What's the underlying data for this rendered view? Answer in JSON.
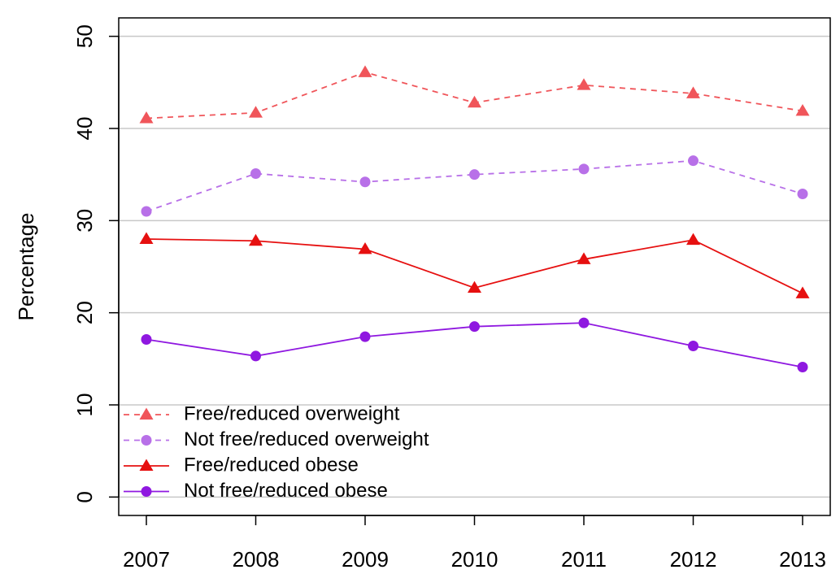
{
  "chart_data": {
    "type": "line",
    "title": "",
    "xlabel": "",
    "ylabel": "Percentage",
    "x": [
      "2007",
      "2008",
      "2009",
      "2010",
      "2011",
      "2012",
      "2013"
    ],
    "ylim": [
      -2,
      52
    ],
    "yticks": [
      0,
      10,
      20,
      30,
      40,
      50
    ],
    "grid": true,
    "legend_position": "bottom-left",
    "series": [
      {
        "name": "Free/reduced overweight",
        "values": [
          41.1,
          41.7,
          46.1,
          42.8,
          44.7,
          43.8,
          41.9
        ],
        "color": "#f0555a",
        "dash": true,
        "marker": "triangle"
      },
      {
        "name": "Not free/reduced overweight",
        "values": [
          31.0,
          35.1,
          34.2,
          35.0,
          35.6,
          36.5,
          32.9
        ],
        "color": "#b870e8",
        "dash": true,
        "marker": "circle"
      },
      {
        "name": "Free/reduced obese",
        "values": [
          28.0,
          27.8,
          26.9,
          22.7,
          25.8,
          27.9,
          22.1
        ],
        "color": "#e61010",
        "dash": false,
        "marker": "triangle"
      },
      {
        "name": "Not free/reduced obese",
        "values": [
          17.1,
          15.3,
          17.4,
          18.5,
          18.9,
          16.4,
          14.1
        ],
        "color": "#8f18e0",
        "dash": false,
        "marker": "circle"
      }
    ]
  }
}
